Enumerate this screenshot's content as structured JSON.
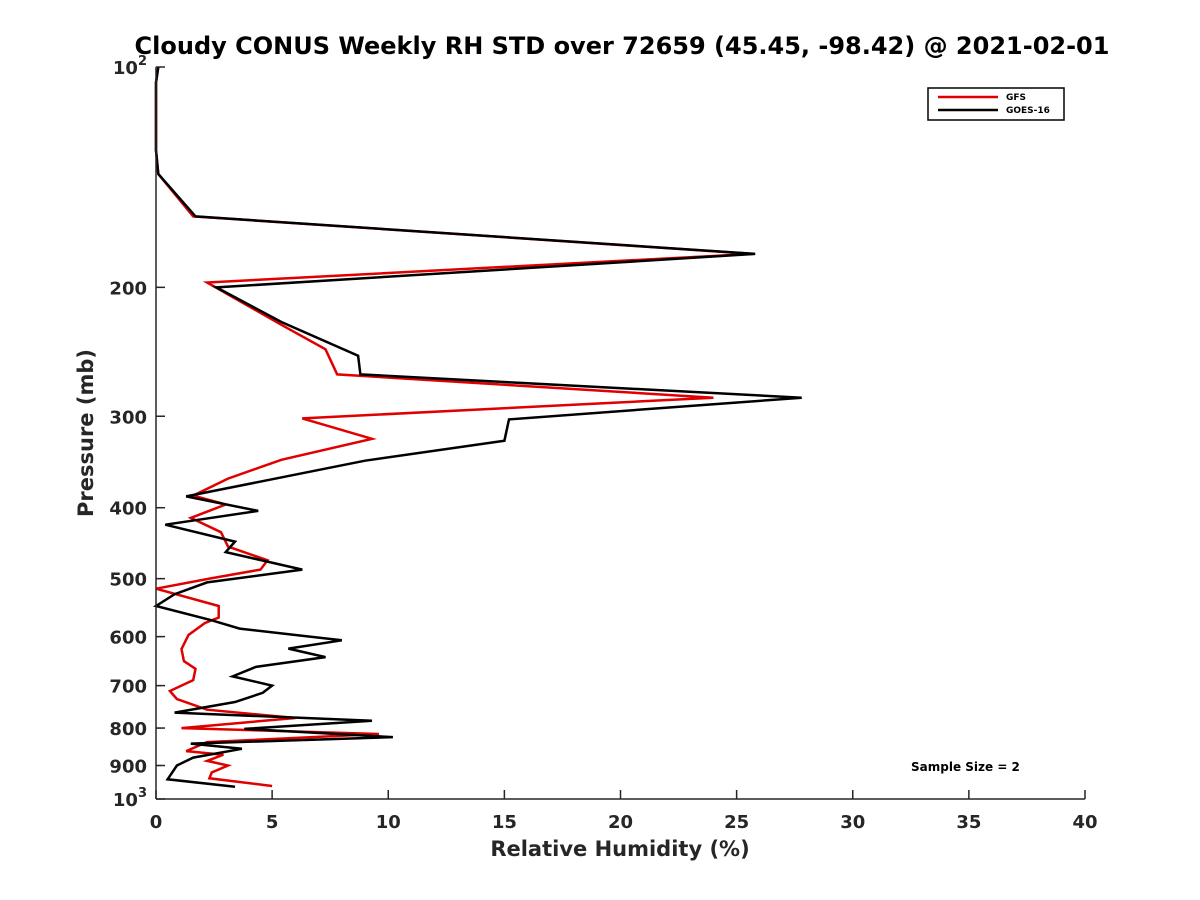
{
  "chart_data": {
    "type": "line",
    "title": "Cloudy CONUS Weekly RH STD over 72659 (45.45, -98.42) @ 2021-02-01",
    "xlabel": "Relative Humidity (%)",
    "ylabel": "Pressure (mb)",
    "xlim": [
      0,
      40
    ],
    "ylim": [
      100,
      1000
    ],
    "y_scale": "log",
    "y_reversed": true,
    "grid": false,
    "legend_position": "top-right",
    "x_ticks": [
      "0",
      "5",
      "10",
      "15",
      "20",
      "25",
      "30",
      "35",
      "40"
    ],
    "x_tick_values": [
      0,
      5,
      10,
      15,
      20,
      25,
      30,
      35,
      40
    ],
    "y_ticks": [
      {
        "value": 100,
        "base": "10",
        "exp": "2"
      },
      {
        "value": 200,
        "label": "200"
      },
      {
        "value": 300,
        "label": "300"
      },
      {
        "value": 400,
        "label": "400"
      },
      {
        "value": 500,
        "label": "500"
      },
      {
        "value": 600,
        "label": "600"
      },
      {
        "value": 700,
        "label": "700"
      },
      {
        "value": 800,
        "label": "800"
      },
      {
        "value": 900,
        "label": "900"
      },
      {
        "value": 1000,
        "base": "10",
        "exp": "3"
      }
    ],
    "series": [
      {
        "name": "GFS",
        "color": "#e00000",
        "points": [
          [
            0.1,
            100
          ],
          [
            0.0,
            105
          ],
          [
            0.0,
            110
          ],
          [
            0.0,
            120
          ],
          [
            0.0,
            130
          ],
          [
            0.1,
            140
          ],
          [
            1.6,
            160
          ],
          [
            25.7,
            180
          ],
          [
            2.2,
            197
          ],
          [
            5.4,
            225
          ],
          [
            7.3,
            243
          ],
          [
            7.8,
            263
          ],
          [
            24.0,
            283
          ],
          [
            6.3,
            302
          ],
          [
            9.3,
            322
          ],
          [
            5.4,
            344
          ],
          [
            3.1,
            365
          ],
          [
            1.6,
            385
          ],
          [
            3.0,
            396
          ],
          [
            1.5,
            413
          ],
          [
            2.8,
            432
          ],
          [
            3.1,
            452
          ],
          [
            4.8,
            472
          ],
          [
            4.5,
            486
          ],
          [
            2.3,
            500
          ],
          [
            0.0,
            516
          ],
          [
            2.7,
            545
          ],
          [
            2.7,
            565
          ],
          [
            2.1,
            575
          ],
          [
            1.4,
            597
          ],
          [
            1.1,
            624
          ],
          [
            1.2,
            648
          ],
          [
            1.7,
            664
          ],
          [
            1.6,
            688
          ],
          [
            0.6,
            712
          ],
          [
            0.9,
            730
          ],
          [
            2.2,
            755
          ],
          [
            6.0,
            775
          ],
          [
            1.1,
            800
          ],
          [
            9.6,
            815
          ],
          [
            2.2,
            836
          ],
          [
            1.3,
            860
          ],
          [
            2.9,
            870
          ],
          [
            2.2,
            887
          ],
          [
            3.1,
            900
          ],
          [
            2.4,
            920
          ],
          [
            2.3,
            937
          ],
          [
            5.0,
            960
          ]
        ]
      },
      {
        "name": "GOES-16",
        "color": "#000000",
        "points": [
          [
            0.1,
            100
          ],
          [
            0.0,
            105
          ],
          [
            0.0,
            110
          ],
          [
            0.0,
            120
          ],
          [
            0.0,
            130
          ],
          [
            0.1,
            140
          ],
          [
            1.7,
            160
          ],
          [
            25.8,
            180
          ],
          [
            2.6,
            200
          ],
          [
            5.4,
            223
          ],
          [
            8.7,
            248
          ],
          [
            8.8,
            263
          ],
          [
            27.8,
            283
          ],
          [
            15.2,
            303
          ],
          [
            15.0,
            324
          ],
          [
            9.0,
            345
          ],
          [
            1.3,
            386
          ],
          [
            4.4,
            404
          ],
          [
            0.4,
            422
          ],
          [
            3.4,
            445
          ],
          [
            3.0,
            460
          ],
          [
            6.3,
            486
          ],
          [
            2.2,
            506
          ],
          [
            0.8,
            525
          ],
          [
            0.0,
            545
          ],
          [
            2.4,
            570
          ],
          [
            3.6,
            585
          ],
          [
            8.0,
            607
          ],
          [
            5.7,
            623
          ],
          [
            7.3,
            640
          ],
          [
            4.3,
            660
          ],
          [
            3.3,
            680
          ],
          [
            5.0,
            700
          ],
          [
            4.6,
            716
          ],
          [
            3.4,
            737
          ],
          [
            0.8,
            762
          ],
          [
            9.3,
            782
          ],
          [
            3.8,
            802
          ],
          [
            10.2,
            823
          ],
          [
            1.5,
            840
          ],
          [
            3.7,
            854
          ],
          [
            1.6,
            878
          ],
          [
            0.9,
            900
          ],
          [
            0.5,
            940
          ],
          [
            3.4,
            962
          ]
        ]
      }
    ],
    "annotations": [
      "Sample Size = 2"
    ]
  }
}
